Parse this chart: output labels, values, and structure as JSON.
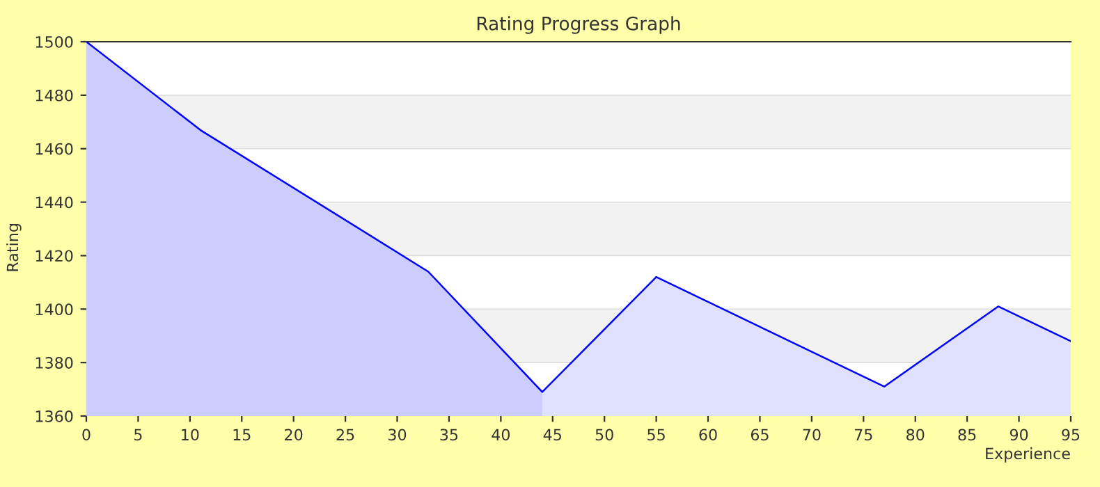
{
  "chart_data": {
    "type": "area",
    "title": "Rating Progress Graph",
    "xlabel": "Experience",
    "ylabel": "Rating",
    "series": [
      {
        "color": "#ccccff",
        "x": [
          0,
          11,
          33,
          44
        ],
        "values": [
          1500,
          1467,
          1414,
          1369
        ]
      },
      {
        "color": "#e0e0ff",
        "x": [
          44,
          55,
          77,
          88,
          95
        ],
        "values": [
          1369,
          1412,
          1371,
          1401,
          1388
        ]
      },
      {
        "type": "line",
        "color": "#0000ff",
        "x": [
          0,
          11,
          33,
          44,
          55,
          77,
          88,
          95
        ],
        "values": [
          1500,
          1467,
          1414,
          1369,
          1412,
          1371,
          1401,
          1388
        ]
      }
    ],
    "xlim": [
      0,
      95
    ],
    "ylim": [
      1360,
      1500
    ],
    "xticks": [
      0,
      5,
      10,
      15,
      20,
      25,
      30,
      35,
      40,
      45,
      50,
      55,
      60,
      65,
      70,
      75,
      80,
      85,
      90,
      95
    ],
    "yticks": [
      1360,
      1380,
      1400,
      1420,
      1440,
      1460,
      1480,
      1500
    ],
    "bands": [
      {
        "axis": "y",
        "from": 1380,
        "to": 1400,
        "color": "#f2f2f2"
      },
      {
        "axis": "y",
        "from": 1420,
        "to": 1440,
        "color": "#f2f2f2"
      },
      {
        "axis": "y",
        "from": 1460,
        "to": 1480,
        "color": "#f2f2f2"
      }
    ],
    "grid": "y",
    "legend": false,
    "marker": "none",
    "line_style": "solid"
  }
}
